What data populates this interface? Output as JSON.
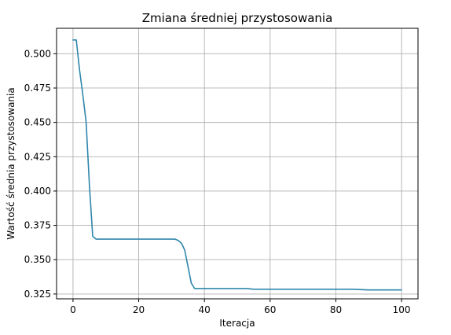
{
  "chart_data": {
    "type": "line",
    "title": "Zmiana średniej przystosowania",
    "xlabel": "Iteracja",
    "ylabel": "Wartość średnia przystosowania",
    "xlim": [
      -5,
      105
    ],
    "ylim": [
      0.3215,
      0.5185
    ],
    "xticks": [
      0,
      20,
      40,
      60,
      80,
      100
    ],
    "xtick_labels": [
      "0",
      "20",
      "40",
      "60",
      "80",
      "100"
    ],
    "yticks": [
      0.325,
      0.35,
      0.375,
      0.4,
      0.425,
      0.45,
      0.475,
      0.5
    ],
    "ytick_labels": [
      "0.325",
      "0.350",
      "0.375",
      "0.400",
      "0.425",
      "0.450",
      "0.475",
      "0.500"
    ],
    "grid": true,
    "line_color": "#2e86ab",
    "series": [
      {
        "x": [
          0,
          1,
          2,
          3,
          4,
          5,
          6,
          7,
          8,
          10,
          15,
          20,
          25,
          30,
          31,
          32,
          33,
          34,
          35,
          36,
          37,
          38,
          40,
          45,
          50,
          53,
          55,
          60,
          70,
          80,
          85,
          90,
          95,
          100
        ],
        "values": [
          0.51,
          0.51,
          0.488,
          0.47,
          0.45,
          0.404,
          0.367,
          0.365,
          0.365,
          0.365,
          0.365,
          0.365,
          0.365,
          0.365,
          0.365,
          0.364,
          0.362,
          0.357,
          0.345,
          0.333,
          0.329,
          0.329,
          0.329,
          0.329,
          0.329,
          0.329,
          0.3285,
          0.3285,
          0.3285,
          0.3285,
          0.3285,
          0.328,
          0.328,
          0.328
        ]
      }
    ]
  }
}
